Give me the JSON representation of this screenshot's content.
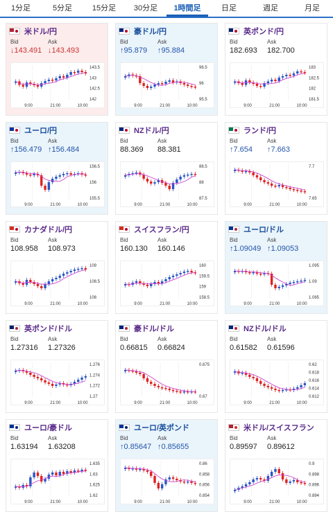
{
  "tabs": [
    "1分足",
    "5分足",
    "15分足",
    "30分足",
    "1時間足",
    "日足",
    "週足",
    "月足"
  ],
  "active_tab": 4,
  "labels": {
    "bid": "Bid",
    "ask": "Ask"
  },
  "cards": [
    {
      "pair": "米ドル/円",
      "bid": "↓143.491",
      "ask": "↓143.493",
      "dir": "down",
      "bg": "red",
      "flag": "us-jp",
      "yticks": [
        "143.5",
        "143",
        "142.5",
        "142"
      ],
      "xticks": [
        "9:00",
        "21:00",
        "10:00"
      ],
      "chart_data": {
        "type": "candlestick",
        "values": [
          0.55,
          0.45,
          0.4,
          0.52,
          0.48,
          0.44,
          0.4,
          0.5,
          0.56,
          0.6,
          0.58,
          0.64,
          0.7,
          0.66,
          0.74,
          0.82,
          0.8,
          0.86,
          0.82,
          0.78
        ]
      }
    },
    {
      "pair": "豪ドル/円",
      "bid": "↑95.879",
      "ask": "↑95.884",
      "dir": "up",
      "bg": "blue",
      "flag": "au-jp",
      "yticks": [
        "96.5",
        "96",
        "95.5"
      ],
      "xticks": [
        "9:00",
        "21:00",
        "10:00"
      ],
      "chart_data": {
        "type": "candlestick",
        "values": [
          0.7,
          0.75,
          0.72,
          0.7,
          0.5,
          0.42,
          0.36,
          0.4,
          0.46,
          0.5,
          0.48,
          0.54,
          0.58,
          0.52,
          0.55,
          0.5,
          0.46,
          0.42,
          0.4,
          0.38
        ]
      }
    },
    {
      "pair": "英ポンド/円",
      "bid": "182.693",
      "ask": "182.700",
      "dir": "none",
      "bg": "white",
      "flag": "uk-jp",
      "yticks": [
        "183",
        "182.5",
        "182",
        "181.5"
      ],
      "xticks": [
        "9:00",
        "21:00",
        "10:00"
      ],
      "chart_data": {
        "type": "candlestick",
        "values": [
          0.55,
          0.5,
          0.45,
          0.58,
          0.52,
          0.48,
          0.42,
          0.4,
          0.5,
          0.55,
          0.6,
          0.56,
          0.66,
          0.7,
          0.74,
          0.72,
          0.78,
          0.84,
          0.82,
          0.8
        ]
      }
    },
    {
      "pair": "ユーロ/円",
      "bid": "↑156.479",
      "ask": "↑156.484",
      "dir": "up",
      "bg": "blue",
      "flag": "eu-jp",
      "yticks": [
        "156.5",
        "156",
        "155.5"
      ],
      "xticks": [
        "9:00",
        "21:00",
        "10:00"
      ],
      "chart_data": {
        "type": "candlestick",
        "values": [
          0.78,
          0.8,
          0.76,
          0.72,
          0.7,
          0.74,
          0.7,
          0.4,
          0.28,
          0.5,
          0.6,
          0.66,
          0.7,
          0.74,
          0.76,
          0.72,
          0.74,
          0.76,
          0.72,
          0.7
        ]
      }
    },
    {
      "pair": "NZドル/円",
      "bid": "88.369",
      "ask": "88.381",
      "dir": "none",
      "bg": "white",
      "flag": "nz-jp",
      "yticks": [
        "88.5",
        "88",
        "87.5"
      ],
      "xticks": [
        "9:00",
        "21:00",
        "10:00"
      ],
      "chart_data": {
        "type": "candlestick",
        "values": [
          0.7,
          0.74,
          0.76,
          0.78,
          0.72,
          0.6,
          0.52,
          0.46,
          0.5,
          0.56,
          0.48,
          0.4,
          0.3,
          0.48,
          0.58,
          0.66,
          0.7,
          0.72,
          0.74,
          0.72
        ]
      }
    },
    {
      "pair": "ランド/円",
      "bid": "↑7.654",
      "ask": "↑7.663",
      "dir": "up",
      "bg": "white",
      "flag": "za-jp",
      "yticks": [
        "7.7",
        "7.65"
      ],
      "xticks": [
        "9:00",
        "21:00",
        "10:00"
      ],
      "chart_data": {
        "type": "candlestick",
        "values": [
          0.86,
          0.84,
          0.8,
          0.82,
          0.78,
          0.7,
          0.64,
          0.56,
          0.5,
          0.46,
          0.4,
          0.38,
          0.42,
          0.36,
          0.34,
          0.3,
          0.28,
          0.26,
          0.24,
          0.22
        ]
      }
    },
    {
      "pair": "カナダドル/円",
      "bid": "108.958",
      "ask": "108.973",
      "dir": "none",
      "bg": "white",
      "flag": "ca-jp",
      "yticks": [
        "109",
        "108.5",
        "108"
      ],
      "xticks": [
        "9:00",
        "21:00",
        "10:00"
      ],
      "chart_data": {
        "type": "candlestick",
        "values": [
          0.5,
          0.44,
          0.4,
          0.54,
          0.48,
          0.42,
          0.36,
          0.3,
          0.42,
          0.5,
          0.56,
          0.6,
          0.66,
          0.72,
          0.76,
          0.8,
          0.84,
          0.86,
          0.88,
          0.84
        ]
      }
    },
    {
      "pair": "スイスフラン/円",
      "bid": "160.130",
      "ask": "160.146",
      "dir": "none",
      "bg": "white",
      "flag": "ch-jp",
      "yticks": [
        "160",
        "159.5",
        "159",
        "158.5"
      ],
      "xticks": [
        "9:00",
        "21:00",
        "10:00"
      ],
      "chart_data": {
        "type": "candlestick",
        "values": [
          0.42,
          0.4,
          0.46,
          0.5,
          0.44,
          0.4,
          0.36,
          0.42,
          0.48,
          0.44,
          0.5,
          0.56,
          0.62,
          0.66,
          0.7,
          0.74,
          0.78,
          0.8,
          0.76,
          0.74
        ]
      }
    },
    {
      "pair": "ユーロ/ドル",
      "bid": "↑1.09049",
      "ask": "↑1.09053",
      "dir": "up",
      "bg": "blue",
      "flag": "eu-us",
      "yticks": [
        "1.095",
        "1.09",
        "1.085"
      ],
      "xticks": [
        "9:00",
        "21:00",
        "10:00"
      ],
      "chart_data": {
        "type": "candlestick",
        "values": [
          0.8,
          0.78,
          0.8,
          0.76,
          0.74,
          0.76,
          0.72,
          0.7,
          0.74,
          0.72,
          0.4,
          0.3,
          0.34,
          0.38,
          0.42,
          0.46,
          0.48,
          0.5,
          0.52,
          0.54
        ]
      }
    },
    {
      "pair": "英ポンド/ドル",
      "bid": "1.27316",
      "ask": "1.27326",
      "dir": "none",
      "bg": "white",
      "flag": "uk-us",
      "yticks": [
        "1.276",
        "1.274",
        "1.272",
        "1.27"
      ],
      "xticks": [
        "9:00",
        "21:00",
        "10:00"
      ],
      "chart_data": {
        "type": "candlestick",
        "values": [
          0.78,
          0.8,
          0.76,
          0.72,
          0.66,
          0.6,
          0.56,
          0.5,
          0.44,
          0.4,
          0.34,
          0.38,
          0.42,
          0.38,
          0.36,
          0.4,
          0.46,
          0.52,
          0.58,
          0.62
        ]
      }
    },
    {
      "pair": "豪ドル/ドル",
      "bid": "0.66815",
      "ask": "0.66824",
      "dir": "none",
      "bg": "white",
      "flag": "au-us",
      "yticks": [
        "0.675",
        "0.67"
      ],
      "xticks": [
        "9:00",
        "21:00",
        "10:00"
      ],
      "chart_data": {
        "type": "candlestick",
        "values": [
          0.8,
          0.78,
          0.76,
          0.72,
          0.68,
          0.56,
          0.46,
          0.4,
          0.34,
          0.3,
          0.28,
          0.26,
          0.22,
          0.2,
          0.18,
          0.16,
          0.18,
          0.16,
          0.18,
          0.16
        ]
      }
    },
    {
      "pair": "NZドル/ドル",
      "bid": "0.61582",
      "ask": "0.61596",
      "dir": "none",
      "bg": "white",
      "flag": "nz-us",
      "yticks": [
        "0.62",
        "0.618",
        "0.616",
        "0.614",
        "0.612"
      ],
      "xticks": [
        "9:00",
        "21:00",
        "10:00"
      ],
      "chart_data": {
        "type": "candlestick",
        "values": [
          0.76,
          0.7,
          0.72,
          0.66,
          0.6,
          0.56,
          0.48,
          0.4,
          0.34,
          0.3,
          0.26,
          0.22,
          0.2,
          0.22,
          0.24,
          0.22,
          0.26,
          0.3,
          0.36,
          0.42
        ]
      }
    },
    {
      "pair": "ユーロ/豪ドル",
      "bid": "1.63194",
      "ask": "1.63208",
      "dir": "none",
      "bg": "white",
      "flag": "eu-au",
      "yticks": [
        "1.635",
        "1.63",
        "1.625",
        "1.62"
      ],
      "xticks": [
        "9:00",
        "21:00",
        "10:00"
      ],
      "chart_data": {
        "type": "candlestick",
        "values": [
          0.3,
          0.26,
          0.34,
          0.3,
          0.56,
          0.7,
          0.6,
          0.44,
          0.52,
          0.64,
          0.7,
          0.62,
          0.72,
          0.66,
          0.74,
          0.7,
          0.76,
          0.74,
          0.78,
          0.76
        ]
      }
    },
    {
      "pair": "ユーロ/英ポンド",
      "bid": "↑0.85647",
      "ask": "↑0.85655",
      "dir": "up",
      "bg": "blue",
      "flag": "eu-uk",
      "yticks": [
        "0.86",
        "0.858",
        "0.856",
        "0.854"
      ],
      "xticks": [
        "9:00",
        "21:00",
        "10:00"
      ],
      "chart_data": {
        "type": "candlestick",
        "values": [
          0.84,
          0.8,
          0.82,
          0.78,
          0.8,
          0.76,
          0.72,
          0.6,
          0.4,
          0.24,
          0.36,
          0.5,
          0.56,
          0.52,
          0.48,
          0.44,
          0.42,
          0.44,
          0.4,
          0.38
        ]
      }
    },
    {
      "pair": "米ドル/スイスフラン",
      "bid": "0.89597",
      "ask": "0.89612",
      "dir": "none",
      "bg": "white",
      "flag": "us-ch",
      "yticks": [
        "0.9",
        "0.898",
        "0.896",
        "0.894"
      ],
      "xticks": [
        "9:00",
        "21:00",
        "10:00"
      ],
      "chart_data": {
        "type": "candlestick",
        "values": [
          0.2,
          0.26,
          0.3,
          0.36,
          0.42,
          0.5,
          0.54,
          0.5,
          0.46,
          0.6,
          0.72,
          0.8,
          0.68,
          0.5,
          0.4,
          0.44,
          0.48,
          0.42,
          0.4,
          0.38
        ]
      }
    }
  ],
  "colors": {
    "up": "#2255aa",
    "down": "#cc3333",
    "candle_up": "#2a56c6",
    "candle_down": "#e02020",
    "ma": "#cc44cc",
    "red_bg": "#fdecec",
    "blue_bg": "#eaf4fb"
  }
}
